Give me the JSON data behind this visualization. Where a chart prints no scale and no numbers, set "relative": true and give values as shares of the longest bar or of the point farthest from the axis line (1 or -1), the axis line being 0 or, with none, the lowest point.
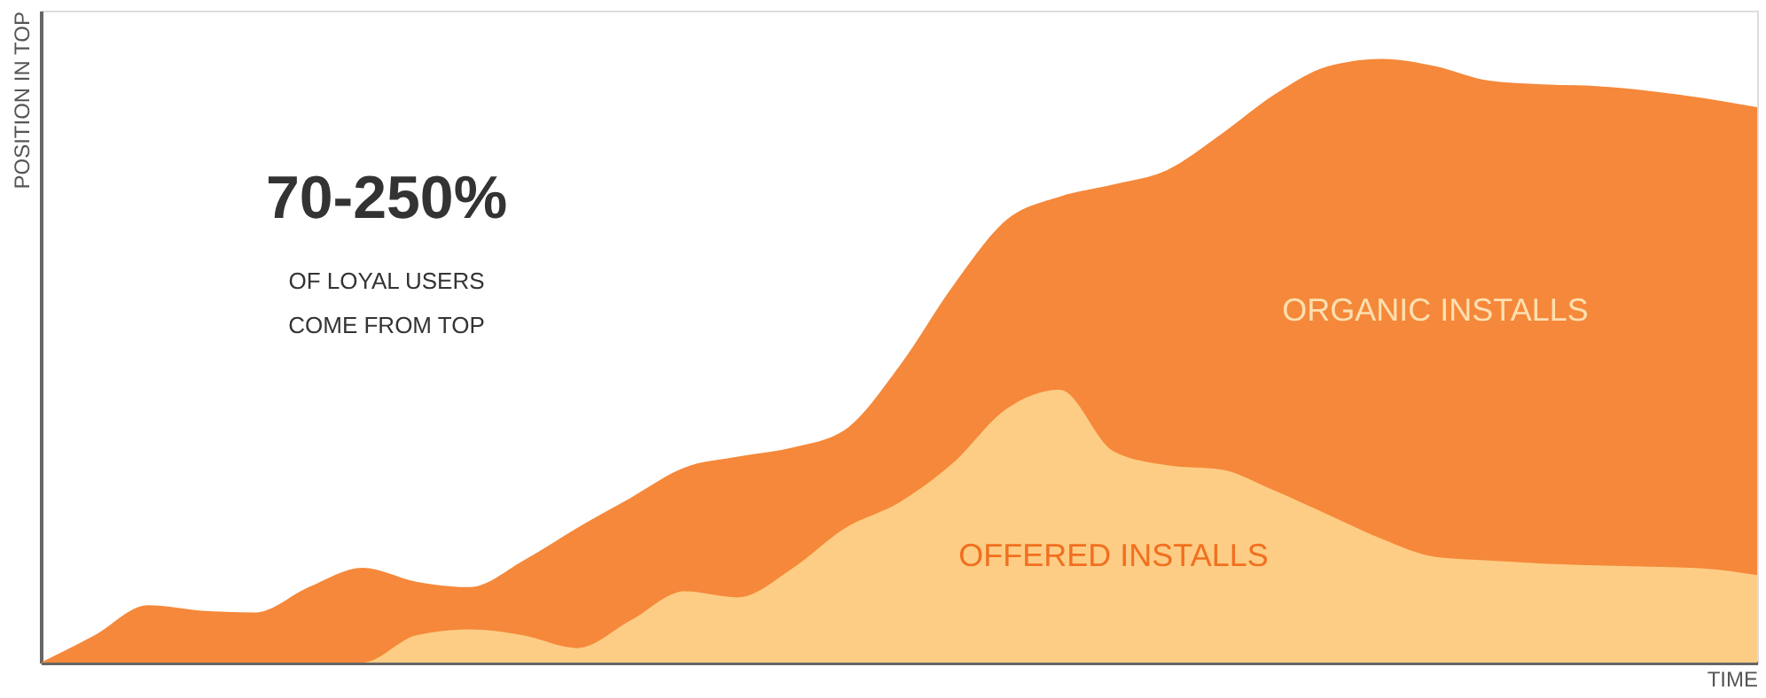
{
  "chart_data": {
    "type": "area",
    "relative": true,
    "xlabel": "TIME",
    "ylabel": "POSITION IN TOP",
    "tick_labels": false,
    "grid": false,
    "categories": [
      null,
      null,
      null,
      null,
      null,
      null,
      null,
      null,
      null,
      null,
      null,
      null,
      null,
      null,
      null,
      null,
      null,
      null,
      null,
      null,
      null,
      null,
      null,
      null,
      null,
      null,
      null,
      null,
      null,
      null,
      null,
      null,
      null
    ],
    "series": [
      {
        "name": "ORGANIC INSTALLS",
        "color": "#f5883a",
        "values": [
          0,
          0.045,
          0.095,
          0.086,
          0.083,
          0.125,
          0.157,
          0.134,
          0.125,
          0.169,
          0.223,
          0.273,
          0.323,
          0.341,
          0.356,
          0.386,
          0.49,
          0.623,
          0.733,
          0.772,
          0.792,
          0.816,
          0.875,
          0.941,
          0.988,
          1,
          0.988,
          0.964,
          0.958,
          0.955,
          0.947,
          0.935,
          0.92
        ]
      },
      {
        "name": "OFFERED INSTALLS",
        "color": "#fdcd85",
        "values": [
          0,
          0,
          0,
          0,
          0,
          0,
          0,
          0.045,
          0.055,
          0.045,
          0.024,
          0.07,
          0.118,
          0.108,
          0.155,
          0.223,
          0.265,
          0.33,
          0.42,
          0.452,
          0.35,
          0.327,
          0.32,
          0.285,
          0.245,
          0.205,
          0.175,
          0.169,
          0.164,
          0.161,
          0.159,
          0.156,
          0.145
        ]
      }
    ],
    "annotations": [
      "70-250%",
      "OF LOYAL USERS",
      "COME FROM TOP"
    ]
  }
}
